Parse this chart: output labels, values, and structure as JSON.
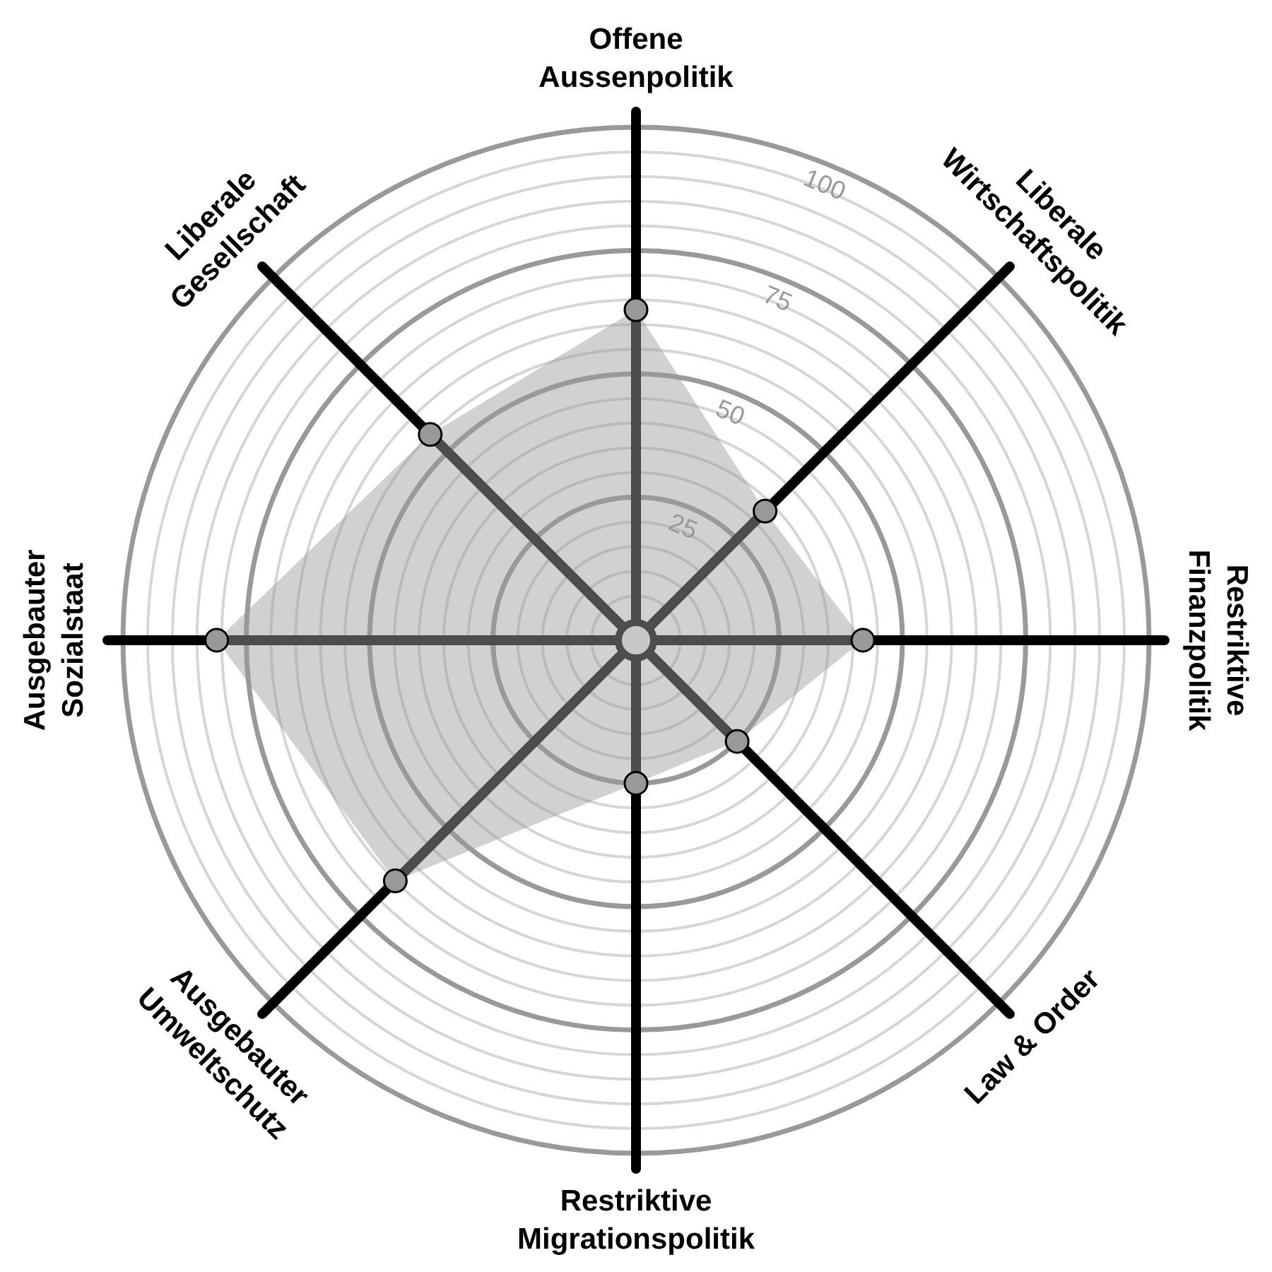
{
  "chart_data": {
    "type": "radar",
    "categories": [
      "Offene Aussenpolitik",
      "Liberale Wirtschaftspolitik",
      "Restriktive Finanzpolitik",
      "Law & Order",
      "Restriktive Migrationspolitik",
      "Ausgebauter Umweltschutz",
      "Ausgebauter Sozialstaat",
      "Liberale Gesellschaft"
    ],
    "series": [
      {
        "color": "#999999",
        "values": [
          63,
          33,
          42,
          25,
          25,
          65,
          81,
          55
        ]
      }
    ],
    "ylim": [
      -4,
      100
    ],
    "yticks": [
      25,
      50,
      75,
      100
    ],
    "grid": true,
    "marker": "circle"
  }
}
